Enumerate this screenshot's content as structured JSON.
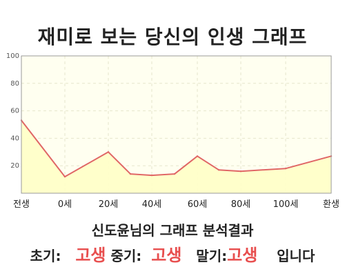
{
  "title": "재미로 보는 당신의 인생 그래프",
  "subtitle": "신도윤님의 그래프 분석결과",
  "result": {
    "early_label": "초기:",
    "early_value": "고생",
    "mid_label": "중기:",
    "mid_value": "고생",
    "late_label": "말기:",
    "late_value": "고생",
    "suffix": "입니다"
  },
  "colors": {
    "line": "#e06666",
    "fill": "#ffffc8",
    "plot_bg": "#fffff0",
    "highlight": "#e84f4f"
  },
  "chart_data": {
    "type": "area",
    "title": "재미로 보는 당신의 인생 그래프",
    "xlabel": "",
    "ylabel": "",
    "ylim": [
      0,
      100
    ],
    "yticks": [
      20,
      40,
      60,
      80,
      100
    ],
    "x_ticks": [
      "전생",
      "0세",
      "20세",
      "40세",
      "60세",
      "80세",
      "100세",
      "환생"
    ],
    "grid": true,
    "legend": "none",
    "series": [
      {
        "points": [
          {
            "x": "전생",
            "y": 53
          },
          {
            "x": "0세",
            "y": 12
          },
          {
            "x": "20세",
            "y": 30
          },
          {
            "x": "30세",
            "y": 14
          },
          {
            "x": "40세",
            "y": 13
          },
          {
            "x": "50세",
            "y": 14
          },
          {
            "x": "60세",
            "y": 27
          },
          {
            "x": "70세",
            "y": 17
          },
          {
            "x": "80세",
            "y": 16
          },
          {
            "x": "100세",
            "y": 18
          },
          {
            "x": "환생",
            "y": 27
          }
        ]
      }
    ]
  }
}
